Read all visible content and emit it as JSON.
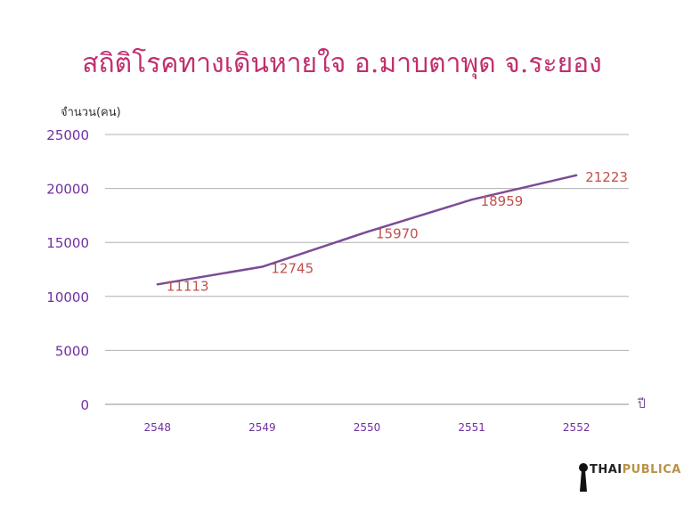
{
  "chart_data": {
    "type": "line",
    "title": "สถิติโรคทางเดินหายใจ อ.มาบตาพุด จ.ระยอง",
    "ylabel": "จำนวน(คน)",
    "xlabel": "ปี",
    "categories": [
      "2548",
      "2549",
      "2550",
      "2551",
      "2552"
    ],
    "series": [
      {
        "values": [
          11113,
          12745,
          15970,
          18959,
          21223
        ]
      }
    ],
    "data_labels": [
      "11113",
      "12745",
      "15970",
      "18959",
      "21223"
    ],
    "ylim": [
      0,
      25000
    ],
    "yticks": [
      "0",
      "5000",
      "10000",
      "15000",
      "20000",
      "25000"
    ],
    "grid": true,
    "colors": {
      "title": "#c0306e",
      "line": "#7b4c96",
      "data_label": "#c0504d",
      "tick": "#7030a0",
      "grid": "#b0b0b0"
    }
  },
  "logo": {
    "part1": "THAI",
    "part2": "PUBLICA"
  }
}
